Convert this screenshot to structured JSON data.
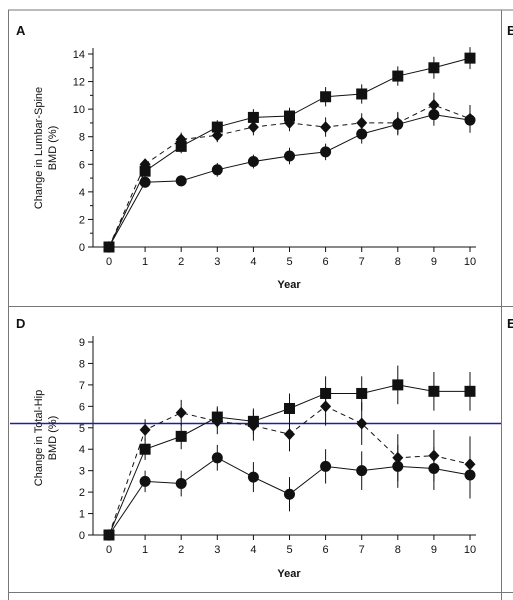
{
  "chart_data": [
    {
      "panel": "A",
      "cut_panel_letter": "B",
      "type": "line",
      "xlabel": "Year",
      "ylabel": [
        "Change in Lumbar-Spine",
        "BMD (%)"
      ],
      "x": [
        0,
        1,
        2,
        3,
        4,
        5,
        6,
        7,
        8,
        9,
        10
      ],
      "xlim": [
        0,
        10
      ],
      "ylim": [
        0,
        14
      ],
      "yticks": [
        0,
        2,
        4,
        6,
        8,
        10,
        12,
        14
      ],
      "grid": false,
      "series": [
        {
          "marker": "square",
          "line": "solid",
          "values": [
            0,
            5.5,
            7.3,
            8.7,
            9.4,
            9.5,
            10.9,
            11.1,
            12.4,
            13.0,
            13.7
          ],
          "err": [
            0,
            0.4,
            0.5,
            0.5,
            0.6,
            0.6,
            0.7,
            0.7,
            0.7,
            0.8,
            0.8
          ]
        },
        {
          "marker": "diamond",
          "line": "dashed",
          "values": [
            0,
            6.0,
            7.8,
            8.1,
            8.7,
            9.0,
            8.7,
            9.0,
            9.0,
            10.3,
            9.3
          ],
          "err": [
            0,
            0.4,
            0.5,
            0.5,
            0.6,
            0.6,
            0.7,
            0.7,
            0.8,
            0.9,
            1.0
          ]
        },
        {
          "marker": "circle",
          "line": "solid",
          "values": [
            0,
            4.7,
            4.8,
            5.6,
            6.2,
            6.6,
            6.9,
            8.2,
            8.9,
            9.6,
            9.2
          ],
          "err": [
            0,
            0.4,
            0.4,
            0.5,
            0.5,
            0.6,
            0.6,
            0.7,
            0.8,
            0.8,
            0.9
          ]
        }
      ]
    },
    {
      "panel": "D",
      "cut_panel_letter": "E",
      "type": "line",
      "xlabel": "Year",
      "ylabel": [
        "Change in Total-Hip",
        "BMD (%)"
      ],
      "x": [
        0,
        1,
        2,
        3,
        4,
        5,
        6,
        7,
        8,
        9,
        10
      ],
      "xlim": [
        0,
        10
      ],
      "ylim": [
        0,
        9
      ],
      "yticks": [
        0,
        1,
        2,
        3,
        4,
        5,
        6,
        7,
        8,
        9
      ],
      "grid": false,
      "reference_line": {
        "y": 5.2,
        "color": "#1f1f9c"
      },
      "series": [
        {
          "marker": "square",
          "line": "solid",
          "values": [
            0,
            4.0,
            4.6,
            5.5,
            5.3,
            5.9,
            6.6,
            6.6,
            7.0,
            6.7,
            6.7
          ],
          "err": [
            0,
            0.5,
            0.6,
            0.5,
            0.6,
            0.7,
            0.8,
            0.8,
            0.9,
            0.9,
            0.9
          ]
        },
        {
          "marker": "diamond",
          "line": "dashed",
          "values": [
            0,
            4.9,
            5.7,
            5.3,
            5.1,
            4.7,
            6.0,
            5.2,
            3.6,
            3.7,
            3.3
          ],
          "err": [
            0,
            0.5,
            0.6,
            0.6,
            0.7,
            0.8,
            0.9,
            1.0,
            1.1,
            1.2,
            1.3
          ]
        },
        {
          "marker": "circle",
          "line": "solid",
          "values": [
            0,
            2.5,
            2.4,
            3.6,
            2.7,
            1.9,
            3.2,
            3.0,
            3.2,
            3.1,
            2.8
          ],
          "err": [
            0,
            0.5,
            0.6,
            0.6,
            0.7,
            0.8,
            0.8,
            0.9,
            1.0,
            1.0,
            1.1
          ]
        }
      ]
    }
  ],
  "colors": {
    "ink": "#111111",
    "frame": "#777777",
    "reference": "#1f1f9c"
  }
}
